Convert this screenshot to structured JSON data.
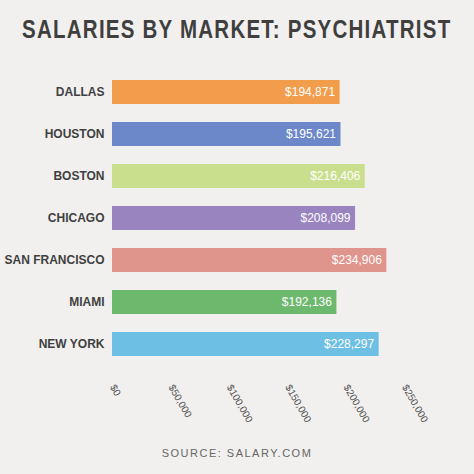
{
  "chart_data": {
    "type": "bar",
    "orientation": "horizontal",
    "title": "SALARIES BY MARKET: PSYCHIATRIST",
    "source": "SOURCE: SALARY.COM",
    "categories": [
      "DALLAS",
      "HOUSTON",
      "BOSTON",
      "CHICAGO",
      "SAN FRANCISCO",
      "MIAMI",
      "NEW YORK"
    ],
    "values": [
      194871,
      195621,
      216406,
      208099,
      234906,
      192136,
      228297
    ],
    "value_labels": [
      "$194,871",
      "$195,621",
      "$216,406",
      "$208,099",
      "$234,906",
      "$192,136",
      "$228,297"
    ],
    "colors": [
      "#f29d4c",
      "#6c88c8",
      "#c9df8e",
      "#9a84c0",
      "#e0958c",
      "#6cb86c",
      "#6dbfe3"
    ],
    "xlim": [
      0,
      250000
    ],
    "xticks": [
      {
        "value": 0,
        "label": "$0"
      },
      {
        "value": 50000,
        "label": "$50,000"
      },
      {
        "value": 100000,
        "label": "$100,000"
      },
      {
        "value": 150000,
        "label": "$150,000"
      },
      {
        "value": 200000,
        "label": "$200,000"
      },
      {
        "value": 250000,
        "label": "$250,000"
      }
    ],
    "grid": false,
    "data_labels": true
  }
}
